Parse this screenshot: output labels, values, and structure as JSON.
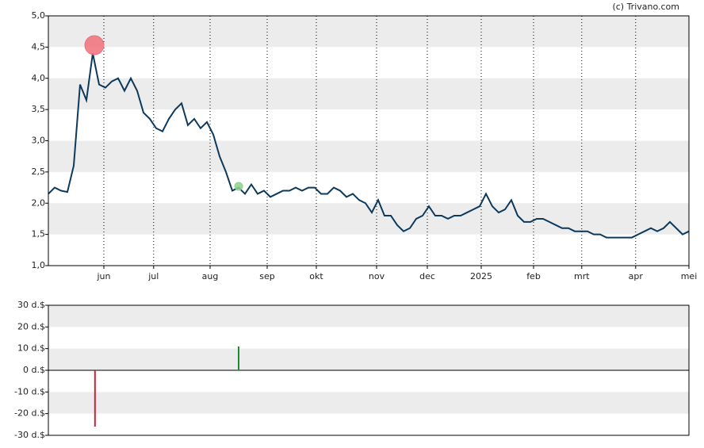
{
  "credit": "(c) Trivano.com",
  "chart_data": [
    {
      "type": "line",
      "values": [
        2.15,
        2.25,
        2.2,
        2.18,
        2.6,
        3.9,
        3.65,
        4.4,
        3.9,
        3.85,
        3.95,
        4.0,
        3.8,
        4.0,
        3.8,
        3.45,
        3.35,
        3.2,
        3.15,
        3.35,
        3.5,
        3.6,
        3.25,
        3.35,
        3.2,
        3.3,
        3.1,
        2.75,
        2.5,
        2.2,
        2.25,
        2.15,
        2.3,
        2.15,
        2.2,
        2.1,
        2.15,
        2.2,
        2.2,
        2.25,
        2.2,
        2.25,
        2.25,
        2.15,
        2.15,
        2.25,
        2.2,
        2.1,
        2.15,
        2.05,
        2.0,
        1.85,
        2.05,
        1.8,
        1.8,
        1.65,
        1.55,
        1.6,
        1.75,
        1.8,
        1.95,
        1.8,
        1.8,
        1.75,
        1.8,
        1.8,
        1.85,
        1.9,
        1.95,
        2.15,
        1.95,
        1.85,
        1.9,
        2.05,
        1.8,
        1.7,
        1.7,
        1.75,
        1.75,
        1.7,
        1.65,
        1.6,
        1.6,
        1.55,
        1.55,
        1.55,
        1.5,
        1.5,
        1.45,
        1.45,
        1.45,
        1.45,
        1.45,
        1.5,
        1.55,
        1.6,
        1.55,
        1.6,
        1.7,
        1.6,
        1.5,
        1.55
      ],
      "color": "#0d3a5c",
      "xlim": [
        0,
        101
      ],
      "xticks": [
        {
          "value": 8.75,
          "label": "jun"
        },
        {
          "value": 16.6,
          "label": "jul"
        },
        {
          "value": 25.5,
          "label": "aug"
        },
        {
          "value": 34.5,
          "label": "sep"
        },
        {
          "value": 42.25,
          "label": "okt"
        },
        {
          "value": 51.75,
          "label": "nov"
        },
        {
          "value": 59.75,
          "label": "dec"
        },
        {
          "value": 68.25,
          "label": "2025"
        },
        {
          "value": 76.5,
          "label": "feb"
        },
        {
          "value": 84.1,
          "label": "mrt"
        },
        {
          "value": 92.6,
          "label": "apr"
        },
        {
          "value": 101,
          "label": "mei"
        }
      ],
      "ylim": [
        1,
        5
      ],
      "yticks": [
        {
          "value": 1,
          "label": "1,0"
        },
        {
          "value": 1.5,
          "label": "1,5"
        },
        {
          "value": 2,
          "label": "2,0"
        },
        {
          "value": 2.5,
          "label": "2,5"
        },
        {
          "value": 3,
          "label": "3,0"
        },
        {
          "value": 3.5,
          "label": "3,5"
        },
        {
          "value": 4,
          "label": "4,0"
        },
        {
          "value": 4.5,
          "label": "4,5"
        },
        {
          "value": 5,
          "label": "5,0"
        }
      ],
      "markers": [
        {
          "x": 7.25,
          "value": 4.53,
          "color": "#f0707a"
        },
        {
          "x": 30,
          "value": 2.27,
          "color": "#8fcf8f"
        }
      ]
    },
    {
      "type": "bar",
      "x": [
        7.35,
        30
      ],
      "values": [
        -26,
        11
      ],
      "colors": [
        "#cc2233",
        "#228833"
      ],
      "xlim": [
        0,
        101
      ],
      "ylim": [
        -30,
        30
      ],
      "yticks": [
        {
          "value": -30,
          "label": "-30 d.$"
        },
        {
          "value": -20,
          "label": "-20 d.$"
        },
        {
          "value": -10,
          "label": "-10 d.$"
        },
        {
          "value": 0,
          "label": "0 d.$"
        },
        {
          "value": 10,
          "label": "10 d.$"
        },
        {
          "value": 20,
          "label": "20 d.$"
        },
        {
          "value": 30,
          "label": "30 d.$"
        }
      ]
    }
  ]
}
